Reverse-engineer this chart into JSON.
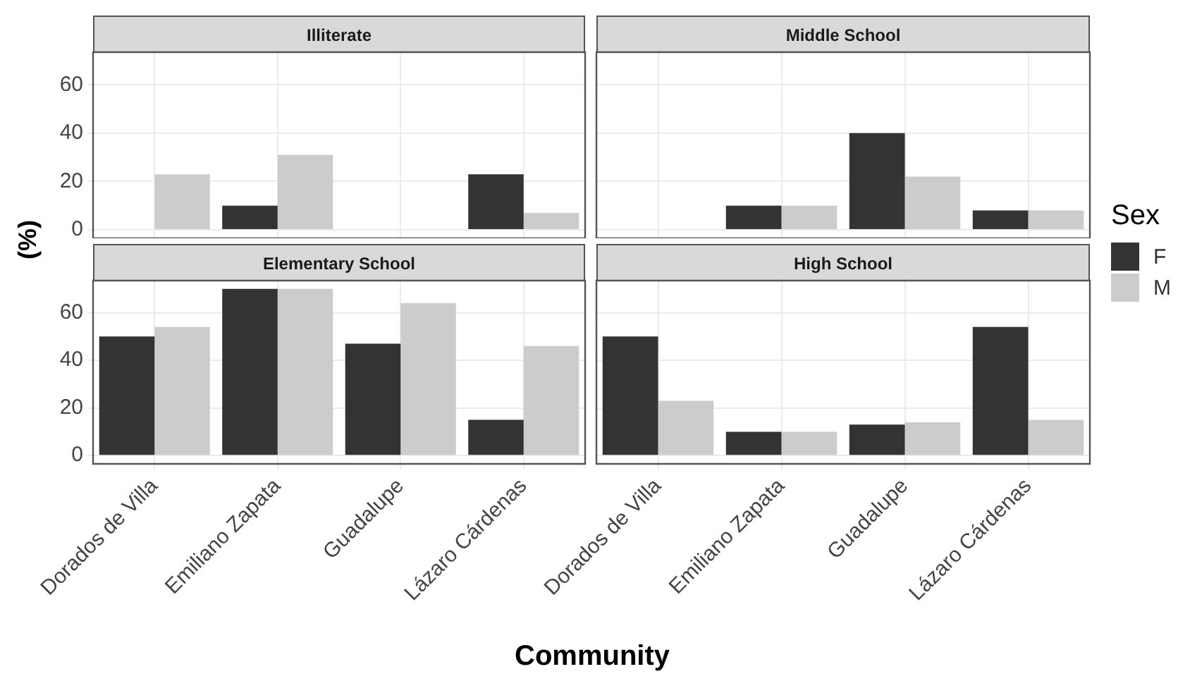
{
  "chart_data": [
    {
      "type": "bar",
      "title": "Illiterate",
      "ylabel": "(%)",
      "legend": "right",
      "legend_title": "Sex",
      "categories": [
        "Dorados de Villa",
        "Emiliano Zapata",
        "Guadalupe",
        "Lázaro Cárdenas"
      ],
      "series": [
        {
          "name": "F",
          "color": "#333333",
          "values": [
            null,
            10,
            null,
            23
          ]
        },
        {
          "name": "M",
          "color": "#cccccc",
          "values": [
            23,
            31,
            null,
            7
          ]
        }
      ],
      "ylim": [
        -3.5,
        73.5
      ],
      "yticks": [
        0,
        20,
        40,
        60
      ],
      "grid": true,
      "tick_labels": "y"
    },
    {
      "type": "bar",
      "title": "Middle School",
      "categories": [
        "Dorados de Villa",
        "Emiliano Zapata",
        "Guadalupe",
        "Lázaro Cárdenas"
      ],
      "series": [
        {
          "name": "F",
          "color": "#333333",
          "values": [
            null,
            10,
            40,
            8
          ]
        },
        {
          "name": "M",
          "color": "#cccccc",
          "values": [
            null,
            10,
            22,
            8
          ]
        }
      ],
      "ylim": [
        -3.5,
        73.5
      ],
      "yticks": [
        0,
        20,
        40,
        60
      ],
      "grid": true,
      "tick_labels": false
    },
    {
      "type": "bar",
      "title": "Elementary School",
      "xlabel": "Community",
      "categories": [
        "Dorados de Villa",
        "Emiliano Zapata",
        "Guadalupe",
        "Lázaro Cárdenas"
      ],
      "series": [
        {
          "name": "F",
          "color": "#333333",
          "values": [
            50,
            70,
            47,
            15
          ]
        },
        {
          "name": "M",
          "color": "#cccccc",
          "values": [
            54,
            70,
            64,
            46
          ]
        }
      ],
      "ylim": [
        -3.5,
        73.5
      ],
      "yticks": [
        0,
        20,
        40,
        60
      ],
      "grid": true
    },
    {
      "type": "bar",
      "title": "High School",
      "categories": [
        "Dorados de Villa",
        "Emiliano Zapata",
        "Guadalupe",
        "Lázaro Cárdenas"
      ],
      "series": [
        {
          "name": "F",
          "color": "#333333",
          "values": [
            50,
            10,
            13,
            54
          ]
        },
        {
          "name": "M",
          "color": "#cccccc",
          "values": [
            23,
            10,
            14,
            15
          ]
        }
      ],
      "ylim": [
        -3.5,
        73.5
      ],
      "yticks": [
        0,
        20,
        40,
        60
      ],
      "grid": true,
      "tick_labels": "x"
    }
  ]
}
